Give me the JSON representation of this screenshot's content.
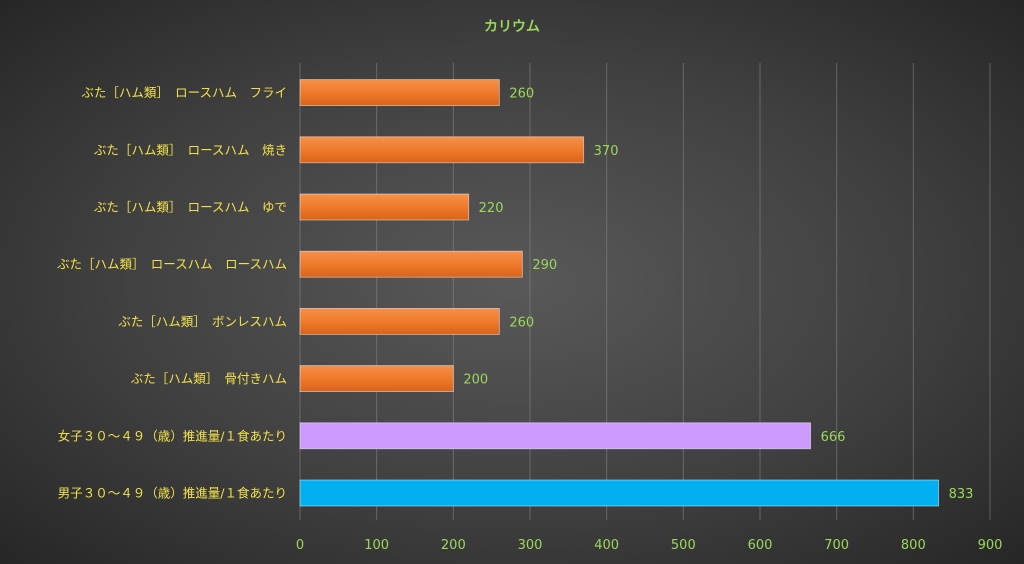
{
  "chart_data": {
    "type": "bar",
    "orientation": "horizontal",
    "title": "カリウム",
    "categories": [
      "ぶた［ハム類］　ロースハム　フライ",
      "ぶた［ハム類］　ロースハム　焼き",
      "ぶた［ハム類］　ロースハム　ゆで",
      "ぶた［ハム類］　ロースハム　ロースハム",
      "ぶた［ハム類］　ボンレスハム",
      "ぶた［ハム類］　骨付きハム",
      "女子３０～４９（歳）推進量/１食あたり",
      "男子３０～４９（歳）推進量/１食あたり"
    ],
    "values": [
      260,
      370,
      220,
      290,
      260,
      200,
      666,
      833
    ],
    "value_labels": [
      "260",
      "370",
      "220",
      "290",
      "260",
      "200",
      "666",
      "833"
    ],
    "bar_colors": [
      "#ef7a2b",
      "#ef7a2b",
      "#ef7a2b",
      "#ef7a2b",
      "#ef7a2b",
      "#ef7a2b",
      "#cc99ff",
      "#00b0f0"
    ],
    "xlim": [
      0,
      900
    ],
    "xticks": [
      0,
      100,
      200,
      300,
      400,
      500,
      600,
      700,
      800,
      900
    ],
    "xtick_labels": [
      "0",
      "100",
      "200",
      "300",
      "400",
      "500",
      "600",
      "700",
      "800",
      "900"
    ],
    "grid": true,
    "legend": "none",
    "colors": {
      "title": "#9bd85a",
      "category_text": "#f2e24a",
      "value_text": "#9bd85a",
      "gridline": "#8a8a8a"
    }
  }
}
